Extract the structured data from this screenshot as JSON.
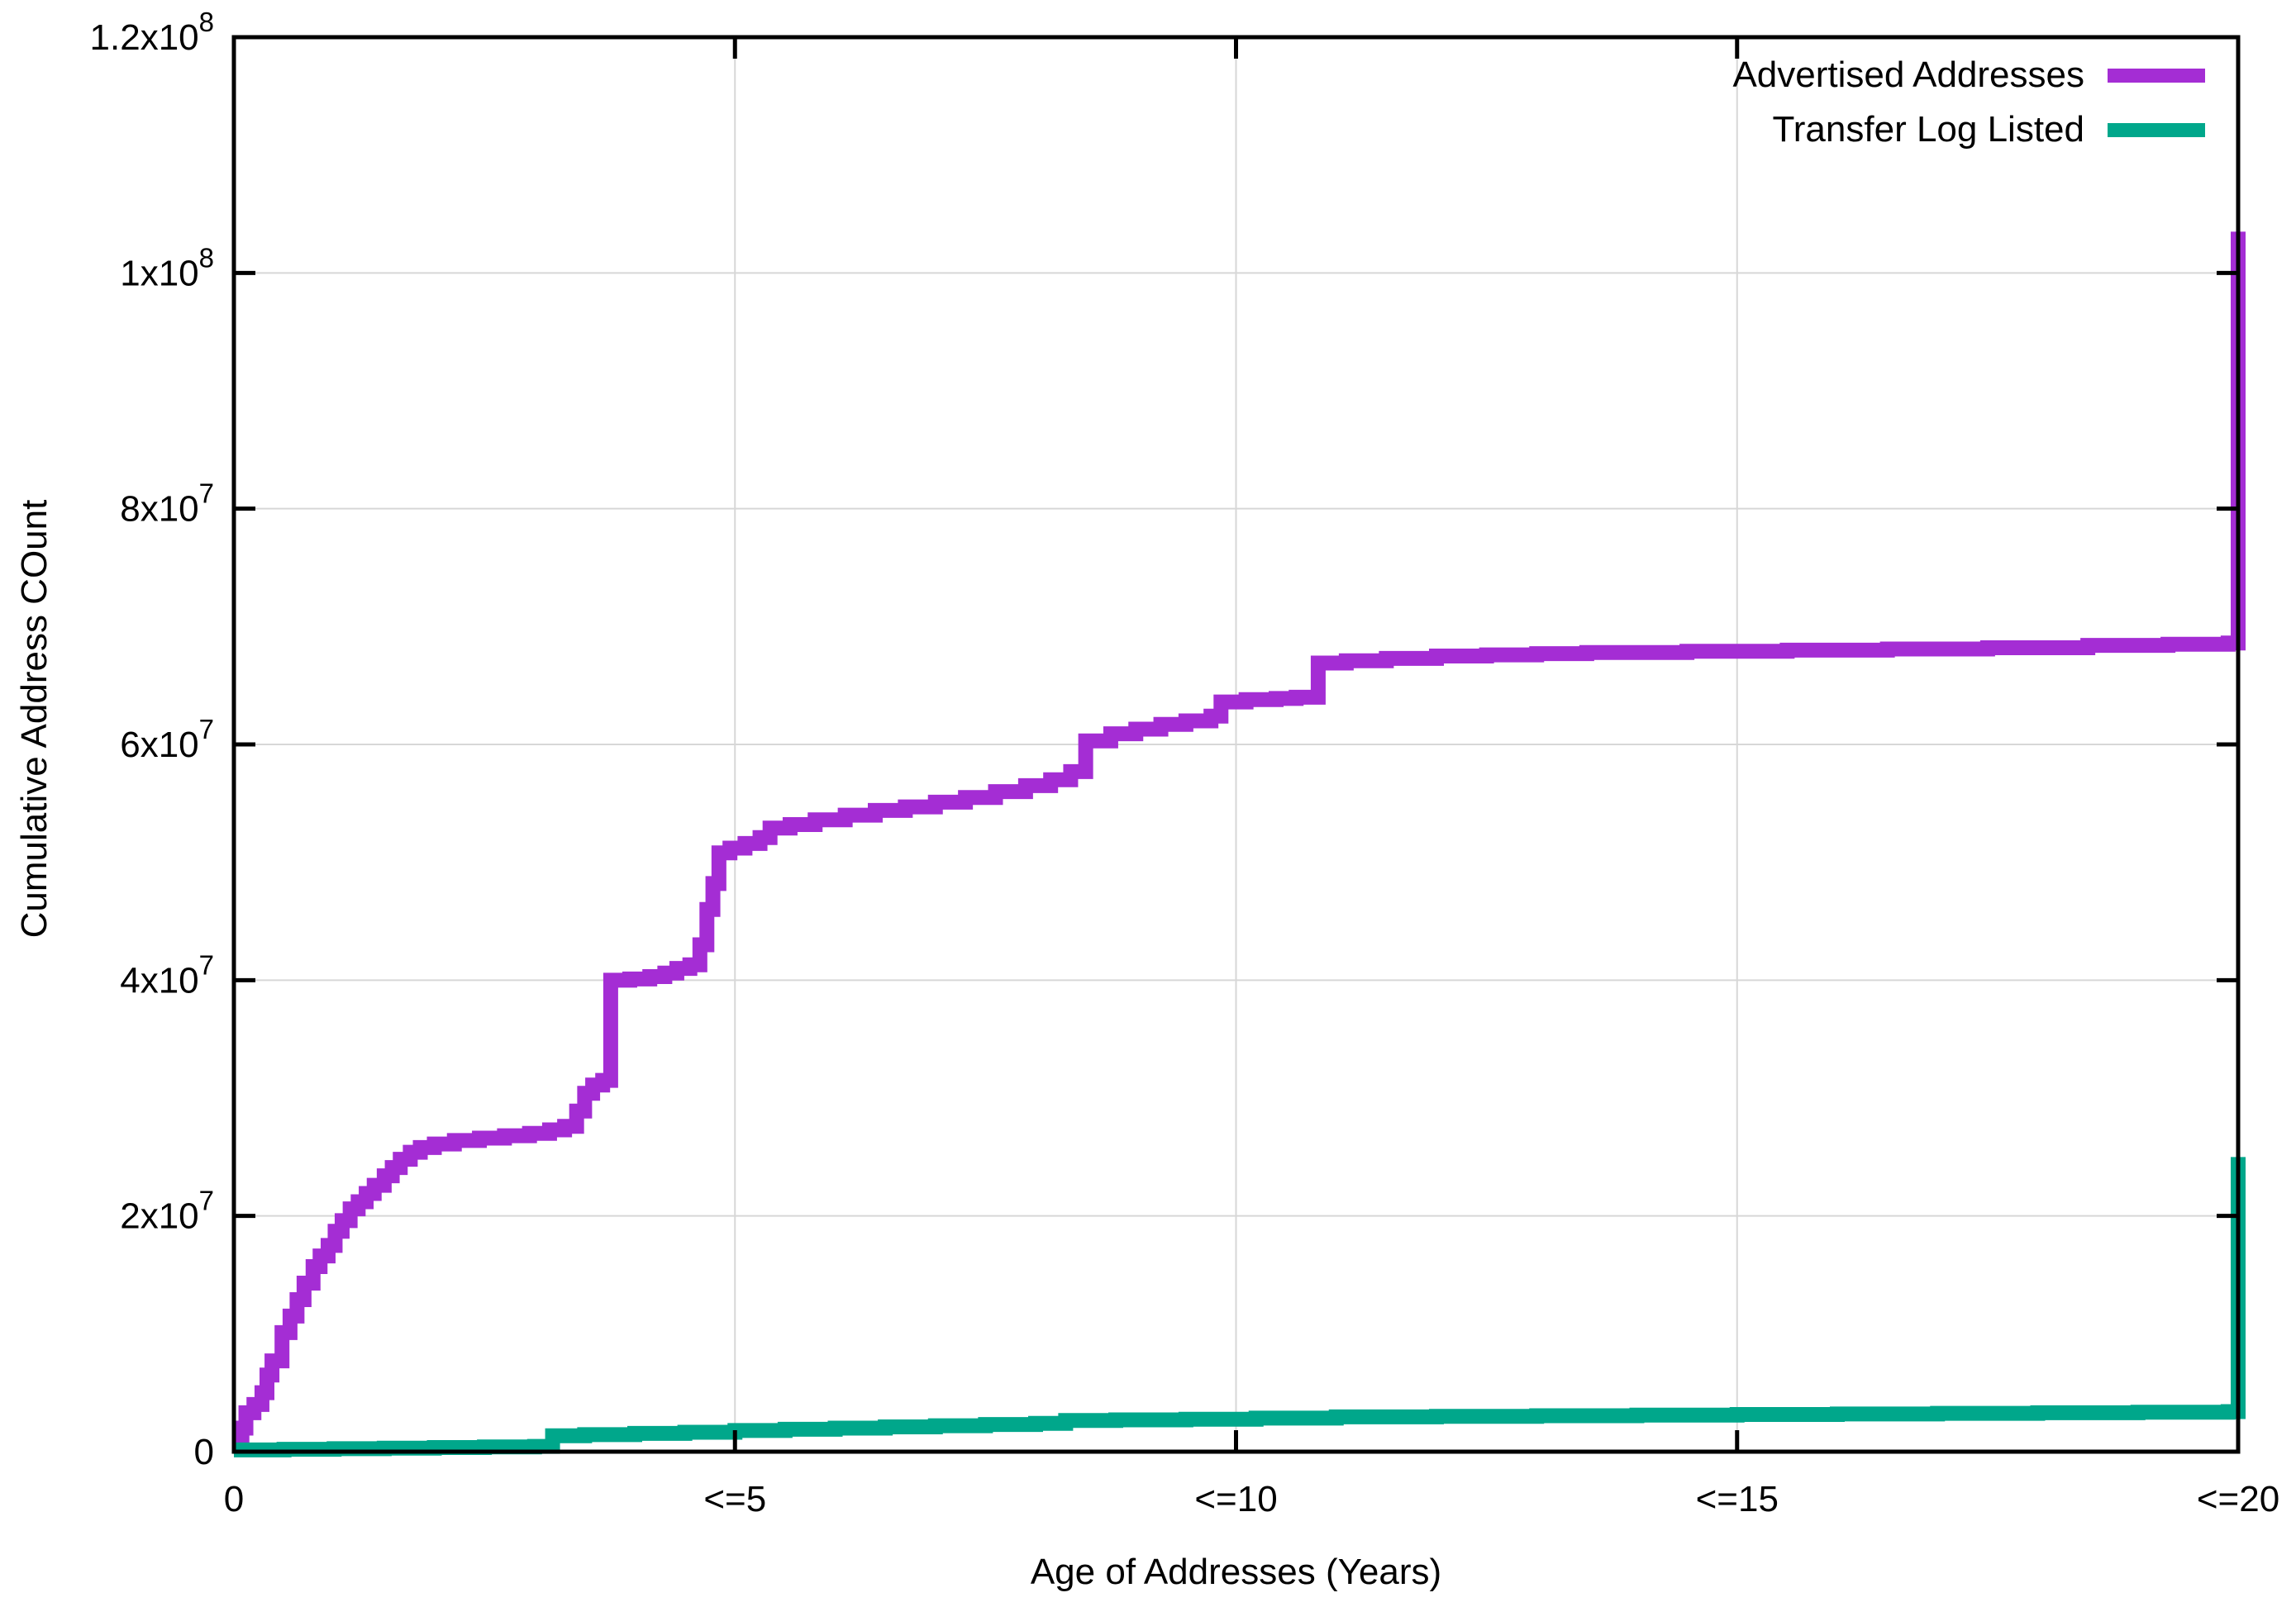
{
  "chart_data": {
    "type": "line",
    "mode": "steps",
    "title": "",
    "xlabel": "Age of Addresses (Years)",
    "ylabel": "Cumulative Address COunt",
    "xlim": [
      0,
      20
    ],
    "ylim": [
      0,
      120000000
    ],
    "grid": true,
    "legend_position": "top-right-inside",
    "background_color": "#ffffff",
    "grid_color": "#d7d7d7",
    "border_color": "#000000",
    "x_ticks": [
      {
        "v": 0,
        "label": "0"
      },
      {
        "v": 5,
        "label": "<=5"
      },
      {
        "v": 10,
        "label": "<=10"
      },
      {
        "v": 15,
        "label": "<=15"
      },
      {
        "v": 20,
        "label": "<=20"
      }
    ],
    "y_ticks": [
      {
        "v": 0,
        "base": "0",
        "exp": ""
      },
      {
        "v": 20000000,
        "base": "2x10",
        "exp": "7"
      },
      {
        "v": 40000000,
        "base": "4x10",
        "exp": "7"
      },
      {
        "v": 60000000,
        "base": "6x10",
        "exp": "7"
      },
      {
        "v": 80000000,
        "base": "8x10",
        "exp": "7"
      },
      {
        "v": 100000000,
        "base": "1x10",
        "exp": "8"
      },
      {
        "v": 120000000,
        "base": "1.2x10",
        "exp": "8"
      }
    ],
    "y_units_of_points": "millions",
    "series": [
      {
        "name": "Advertised Addresses",
        "color": "#a42dd4",
        "points": [
          [
            0,
            1
          ],
          [
            0.08,
            2
          ],
          [
            0.12,
            3.3
          ],
          [
            0.2,
            4
          ],
          [
            0.28,
            5
          ],
          [
            0.33,
            6.5
          ],
          [
            0.38,
            7.7
          ],
          [
            0.48,
            10.1
          ],
          [
            0.56,
            11.5
          ],
          [
            0.63,
            12.9
          ],
          [
            0.7,
            14.3
          ],
          [
            0.79,
            15.7
          ],
          [
            0.86,
            16.6
          ],
          [
            0.94,
            17.5
          ],
          [
            1.01,
            18.7
          ],
          [
            1.08,
            19.6
          ],
          [
            1.16,
            20.6
          ],
          [
            1.24,
            21.2
          ],
          [
            1.32,
            21.9
          ],
          [
            1.4,
            22.6
          ],
          [
            1.5,
            23.4
          ],
          [
            1.58,
            24.1
          ],
          [
            1.66,
            24.8
          ],
          [
            1.76,
            25.4
          ],
          [
            1.86,
            25.8
          ],
          [
            2.0,
            26.1
          ],
          [
            2.2,
            26.4
          ],
          [
            2.45,
            26.6
          ],
          [
            2.7,
            26.8
          ],
          [
            2.95,
            27.0
          ],
          [
            3.15,
            27.3
          ],
          [
            3.3,
            27.6
          ],
          [
            3.42,
            28.9
          ],
          [
            3.5,
            30.4
          ],
          [
            3.58,
            31.1
          ],
          [
            3.68,
            31.5
          ],
          [
            3.76,
            40.0
          ],
          [
            3.95,
            40.1
          ],
          [
            4.15,
            40.3
          ],
          [
            4.3,
            40.6
          ],
          [
            4.42,
            41.0
          ],
          [
            4.55,
            41.3
          ],
          [
            4.65,
            43.0
          ],
          [
            4.72,
            46.0
          ],
          [
            4.78,
            48.2
          ],
          [
            4.84,
            50.8
          ],
          [
            4.95,
            51.2
          ],
          [
            5.1,
            51.6
          ],
          [
            5.25,
            52.1
          ],
          [
            5.35,
            52.9
          ],
          [
            5.55,
            53.2
          ],
          [
            5.8,
            53.6
          ],
          [
            6.1,
            54.0
          ],
          [
            6.4,
            54.4
          ],
          [
            6.7,
            54.7
          ],
          [
            7.0,
            55.1
          ],
          [
            7.3,
            55.5
          ],
          [
            7.6,
            56.0
          ],
          [
            7.9,
            56.5
          ],
          [
            8.15,
            57.0
          ],
          [
            8.35,
            57.7
          ],
          [
            8.5,
            60.3
          ],
          [
            8.75,
            60.9
          ],
          [
            9.0,
            61.3
          ],
          [
            9.25,
            61.7
          ],
          [
            9.5,
            62.0
          ],
          [
            9.75,
            62.4
          ],
          [
            9.85,
            63.6
          ],
          [
            10.1,
            63.8
          ],
          [
            10.4,
            63.9
          ],
          [
            10.6,
            64.0
          ],
          [
            10.82,
            66.9
          ],
          [
            11.1,
            67.1
          ],
          [
            11.5,
            67.3
          ],
          [
            12.0,
            67.5
          ],
          [
            12.5,
            67.6
          ],
          [
            13.0,
            67.7
          ],
          [
            13.5,
            67.8
          ],
          [
            14.5,
            67.9
          ],
          [
            15.5,
            68.0
          ],
          [
            16.5,
            68.1
          ],
          [
            17.5,
            68.2
          ],
          [
            18.5,
            68.4
          ],
          [
            19.3,
            68.5
          ],
          [
            19.9,
            68.6
          ],
          [
            20,
            103.5
          ]
        ]
      },
      {
        "name": "Transfer Log Listed",
        "color": "#00a78b",
        "points": [
          [
            0,
            0.15
          ],
          [
            0.5,
            0.2
          ],
          [
            1.0,
            0.25
          ],
          [
            1.5,
            0.3
          ],
          [
            2.0,
            0.35
          ],
          [
            2.5,
            0.4
          ],
          [
            3.0,
            0.45
          ],
          [
            3.18,
            1.35
          ],
          [
            3.5,
            1.45
          ],
          [
            4.0,
            1.55
          ],
          [
            4.5,
            1.65
          ],
          [
            5.0,
            1.8
          ],
          [
            5.5,
            1.9
          ],
          [
            6.0,
            2.0
          ],
          [
            6.5,
            2.1
          ],
          [
            7.0,
            2.2
          ],
          [
            7.5,
            2.3
          ],
          [
            8.0,
            2.4
          ],
          [
            8.3,
            2.65
          ],
          [
            8.8,
            2.7
          ],
          [
            9.5,
            2.75
          ],
          [
            10.2,
            2.85
          ],
          [
            11.0,
            2.95
          ],
          [
            12.0,
            3.0
          ],
          [
            13.0,
            3.05
          ],
          [
            14.0,
            3.1
          ],
          [
            15.0,
            3.15
          ],
          [
            16.0,
            3.2
          ],
          [
            17.0,
            3.25
          ],
          [
            18.0,
            3.3
          ],
          [
            19.0,
            3.35
          ],
          [
            19.9,
            3.4
          ],
          [
            20,
            25.0
          ]
        ]
      }
    ]
  }
}
